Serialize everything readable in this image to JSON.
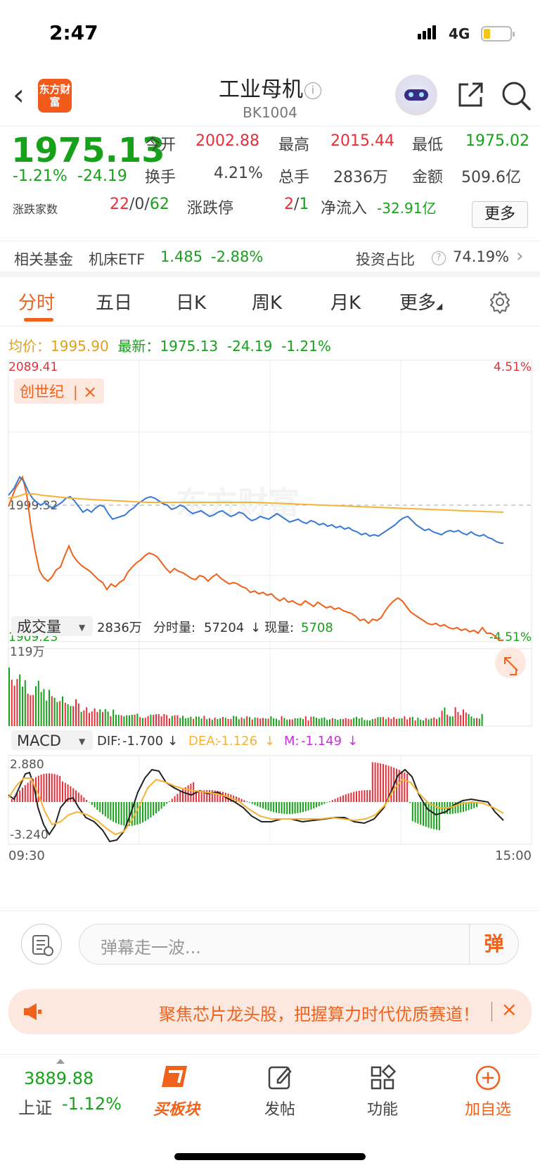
{
  "status": {
    "time": "2:47",
    "network": "4G"
  },
  "header": {
    "title": "工业母机",
    "code": "BK1004",
    "logo_text": "东方财富"
  },
  "quote": {
    "price": "1975.13",
    "change_pct": "-1.21%",
    "change": "-24.19",
    "open_label": "今开",
    "open": "2002.88",
    "high_label": "最高",
    "high": "2015.44",
    "low_label": "最低",
    "low": "1975.02",
    "turnover_label": "换手",
    "turnover": "4.21%",
    "volume_label": "总手",
    "volume": "2836万",
    "amount_label": "金额",
    "amount": "509.6亿",
    "breadth_label": "涨跌家数",
    "up": "22",
    "flat": "0",
    "down": "62",
    "limit_label": "涨跌停",
    "limit_up": "2",
    "limit_down": "1",
    "netflow_label": "净流入",
    "netflow": "-32.91亿",
    "more_label": "更多"
  },
  "fund": {
    "label": "相关基金",
    "name": "机床ETF",
    "price": "1.485",
    "change": "-2.88%",
    "ratio_label": "投资占比",
    "ratio": "74.19%"
  },
  "tabs": [
    "分时",
    "五日",
    "日K",
    "周K",
    "月K",
    "更多"
  ],
  "intraday": {
    "avg_label": "均价：",
    "avg": "1995.90",
    "latest_label": "最新：",
    "latest": "1975.13",
    "latest_change": "-24.19",
    "latest_pct": "-1.21%",
    "y_max": "2089.41",
    "y_mid": "1999.32",
    "y_min": "1909.23",
    "pct_max": "4.51%",
    "pct_min": "-4.51%",
    "tag": "创世纪",
    "watermark": "东方财富",
    "start_time": "09:30",
    "end_time": "15:00"
  },
  "volume_panel": {
    "selector": "成交量",
    "total": "2836万",
    "fs_label": "分时量:",
    "fs": "57204",
    "now_label": "现量:",
    "now": "5708",
    "ymax": "119万"
  },
  "macd_panel": {
    "selector": "MACD",
    "dif_label": "DIF:",
    "dif": "-1.700",
    "dea_label": "DEA:",
    "dea": "-1.126",
    "m_label": "M:",
    "m": "-1.149",
    "ymax": "2.880",
    "ymin": "-3.240"
  },
  "danmu": {
    "placeholder": "弹幕走一波...",
    "button": "弹"
  },
  "banner": {
    "text": "聚焦芯片龙头股，把握算力时代优质赛道！",
    "close": "×"
  },
  "bottom": {
    "index_value": "3889.88",
    "index_name": "上证",
    "index_change": "-1.12%",
    "items": [
      "买板块",
      "发帖",
      "功能",
      "加自选"
    ]
  },
  "colors": {
    "up": "#e5303a",
    "down": "#17a11b",
    "accent": "#f0621b",
    "price_line": "#3a7bd5",
    "avg_line": "#f5b335",
    "stock_line": "#f0621b"
  }
}
